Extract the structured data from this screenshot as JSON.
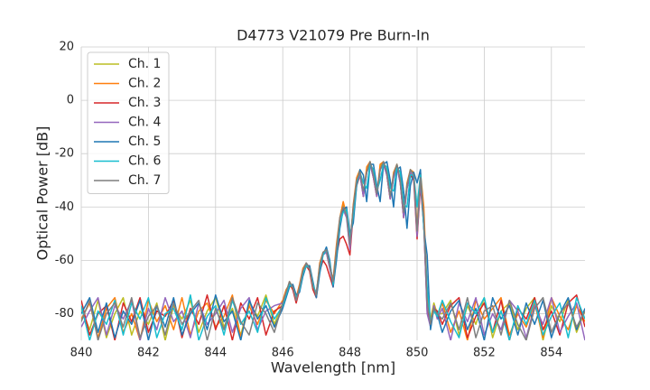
{
  "chart_data": {
    "type": "line",
    "title": "D4773 V21079 Pre Burn-In",
    "x_label": "Wavelength [nm]",
    "y_label": "Optical Power [dB]",
    "xlim": [
      840,
      855
    ],
    "xticks": [
      840,
      842,
      844,
      846,
      848,
      850,
      852,
      854
    ],
    "ylim": [
      -90,
      20
    ],
    "yticks": [
      -80,
      -60,
      -40,
      -20,
      0,
      20
    ],
    "grid": true,
    "legend": "upper left",
    "x": [
      840,
      840.25,
      840.5,
      840.75,
      841,
      841.25,
      841.5,
      841.75,
      842,
      842.25,
      842.5,
      842.75,
      843,
      843.25,
      843.5,
      843.75,
      844,
      844.25,
      844.5,
      844.75,
      845,
      845.25,
      845.5,
      845.75,
      846,
      846.1,
      846.2,
      846.3,
      846.4,
      846.5,
      846.6,
      846.7,
      846.8,
      846.9,
      847,
      847.1,
      847.2,
      847.3,
      847.4,
      847.5,
      847.6,
      847.7,
      847.8,
      847.9,
      848,
      848.1,
      848.2,
      848.3,
      848.4,
      848.5,
      848.6,
      848.7,
      848.8,
      848.9,
      849,
      849.1,
      849.2,
      849.3,
      849.4,
      849.5,
      849.6,
      849.7,
      849.8,
      849.9,
      850,
      850.1,
      850.2,
      850.3,
      850.4,
      850.5,
      850.6,
      850.75,
      851,
      851.25,
      851.5,
      851.75,
      852,
      852.25,
      852.5,
      852.75,
      853,
      853.25,
      853.5,
      853.75,
      854,
      854.25,
      854.5,
      854.75,
      855
    ],
    "series": [
      {
        "name": "Ch. 1",
        "color": "#bcbd22",
        "values": [
          -78,
          -86,
          -75,
          -89,
          -80,
          -74,
          -88,
          -79,
          -84,
          -76,
          -90,
          -77,
          -82,
          -75,
          -87,
          -79,
          -74,
          -85,
          -78,
          -88,
          -76,
          -81,
          -73,
          -84,
          -76,
          -72,
          -68,
          -70,
          -75,
          -70,
          -64,
          -61,
          -63,
          -70,
          -72,
          -62,
          -57,
          -56,
          -62,
          -68,
          -55,
          -45,
          -39,
          -42,
          -55,
          -40,
          -30,
          -27,
          -35,
          -26,
          -23,
          -28,
          -35,
          -25,
          -23,
          -27,
          -36,
          -28,
          -24,
          -30,
          -43,
          -32,
          -26,
          -28,
          -50,
          -30,
          -45,
          -78,
          -82,
          -76,
          -80,
          -80,
          -75,
          -88,
          -77,
          -84,
          -74,
          -89,
          -79,
          -76,
          -86,
          -78,
          -74,
          -90,
          -77,
          -83,
          -75,
          -87,
          -79
        ]
      },
      {
        "name": "Ch. 2",
        "color": "#ff7f0e",
        "values": [
          -82,
          -76,
          -89,
          -78,
          -74,
          -87,
          -80,
          -90,
          -75,
          -83,
          -77,
          -86,
          -74,
          -88,
          -79,
          -76,
          -85,
          -81,
          -73,
          -89,
          -77,
          -84,
          -75,
          -80,
          -75,
          -71,
          -69,
          -71,
          -74,
          -69,
          -63,
          -61,
          -64,
          -71,
          -73,
          -61,
          -57,
          -57,
          -63,
          -67,
          -54,
          -44,
          -38,
          -43,
          -56,
          -39,
          -29,
          -26,
          -36,
          -25,
          -23,
          -29,
          -36,
          -24,
          -23,
          -28,
          -37,
          -27,
          -24,
          -31,
          -44,
          -31,
          -26,
          -27,
          -48,
          -27,
          -40,
          -72,
          -84,
          -77,
          -81,
          -76,
          -87,
          -79,
          -90,
          -75,
          -82,
          -78,
          -74,
          -88,
          -80,
          -85,
          -76,
          -89,
          -74,
          -81,
          -86,
          -77,
          -83
        ]
      },
      {
        "name": "Ch. 3",
        "color": "#d62728",
        "values": [
          -75,
          -88,
          -80,
          -77,
          -90,
          -76,
          -83,
          -74,
          -87,
          -79,
          -81,
          -75,
          -89,
          -78,
          -84,
          -73,
          -86,
          -77,
          -90,
          -76,
          -82,
          -74,
          -88,
          -79,
          -77,
          -73,
          -68,
          -71,
          -76,
          -71,
          -65,
          -62,
          -64,
          -71,
          -74,
          -64,
          -60,
          -62,
          -66,
          -70,
          -58,
          -52,
          -51,
          -54,
          -58,
          -42,
          -32,
          -28,
          -36,
          -27,
          -24,
          -29,
          -36,
          -26,
          -24,
          -28,
          -37,
          -29,
          -25,
          -31,
          -44,
          -33,
          -28,
          -30,
          -52,
          -32,
          -47,
          -79,
          -83,
          -78,
          -79,
          -84,
          -77,
          -74,
          -89,
          -81,
          -76,
          -87,
          -75,
          -90,
          -78,
          -82,
          -74,
          -86,
          -79,
          -88,
          -76,
          -73,
          -85
        ]
      },
      {
        "name": "Ch. 4",
        "color": "#9467bd",
        "values": [
          -85,
          -79,
          -74,
          -88,
          -77,
          -82,
          -75,
          -90,
          -78,
          -86,
          -74,
          -83,
          -79,
          -89,
          -76,
          -84,
          -80,
          -75,
          -87,
          -78,
          -74,
          -86,
          -79,
          -77,
          -76,
          -72,
          -69,
          -70,
          -75,
          -70,
          -64,
          -61,
          -63,
          -70,
          -72,
          -63,
          -58,
          -57,
          -63,
          -69,
          -56,
          -46,
          -41,
          -44,
          -56,
          -41,
          -31,
          -28,
          -36,
          -27,
          -24,
          -29,
          -36,
          -26,
          -24,
          -28,
          -37,
          -29,
          -25,
          -31,
          -44,
          -33,
          -27,
          -29,
          -51,
          -31,
          -46,
          -80,
          -85,
          -77,
          -82,
          -78,
          -90,
          -76,
          -83,
          -74,
          -88,
          -80,
          -86,
          -75,
          -79,
          -89,
          -77,
          -84,
          -74,
          -87,
          -81,
          -76,
          -90
        ]
      },
      {
        "name": "Ch. 5",
        "color": "#1f77b4",
        "values": [
          -80,
          -74,
          -87,
          -76,
          -89,
          -79,
          -84,
          -75,
          -90,
          -77,
          -85,
          -74,
          -88,
          -80,
          -76,
          -86,
          -73,
          -83,
          -79,
          -90,
          -75,
          -82,
          -77,
          -85,
          -78,
          -74,
          -70,
          -69,
          -73,
          -72,
          -66,
          -62,
          -62,
          -68,
          -74,
          -65,
          -58,
          -55,
          -60,
          -70,
          -60,
          -48,
          -41,
          -40,
          -50,
          -46,
          -32,
          -26,
          -28,
          -38,
          -24,
          -24,
          -32,
          -38,
          -24,
          -23,
          -30,
          -40,
          -26,
          -25,
          -34,
          -48,
          -32,
          -27,
          -31,
          -26,
          -48,
          -58,
          -86,
          -78,
          -80,
          -87,
          -79,
          -75,
          -86,
          -78,
          -90,
          -74,
          -82,
          -77,
          -88,
          -76,
          -84,
          -75,
          -89,
          -80,
          -74,
          -86,
          -78
        ]
      },
      {
        "name": "Ch. 6",
        "color": "#17becf",
        "values": [
          -77,
          -90,
          -79,
          -84,
          -75,
          -88,
          -76,
          -82,
          -74,
          -89,
          -80,
          -78,
          -86,
          -73,
          -90,
          -81,
          -77,
          -88,
          -75,
          -84,
          -79,
          -87,
          -74,
          -82,
          -77,
          -73,
          -69,
          -70,
          -74,
          -71,
          -65,
          -62,
          -63,
          -69,
          -73,
          -63,
          -58,
          -56,
          -61,
          -69,
          -57,
          -46,
          -42,
          -41,
          -52,
          -43,
          -31,
          -27,
          -31,
          -33,
          -24,
          -26,
          -34,
          -30,
          -24,
          -25,
          -33,
          -34,
          -25,
          -27,
          -39,
          -40,
          -28,
          -28,
          -40,
          -28,
          -47,
          -70,
          -83,
          -79,
          -81,
          -75,
          -83,
          -89,
          -76,
          -80,
          -74,
          -87,
          -79,
          -90,
          -77,
          -84,
          -75,
          -88,
          -81,
          -76,
          -89,
          -74,
          -82
        ]
      },
      {
        "name": "Ch. 7",
        "color": "#7f7f7f",
        "values": [
          -83,
          -75,
          -90,
          -80,
          -76,
          -85,
          -74,
          -89,
          -81,
          -77,
          -88,
          -76,
          -84,
          -79,
          -75,
          -90,
          -78,
          -86,
          -74,
          -83,
          -88,
          -76,
          -80,
          -87,
          -76,
          -72,
          -68,
          -70,
          -75,
          -70,
          -64,
          -61,
          -63,
          -70,
          -73,
          -62,
          -57,
          -56,
          -62,
          -68,
          -56,
          -44,
          -40,
          -43,
          -54,
          -40,
          -30,
          -27,
          -34,
          -27,
          -23,
          -28,
          -35,
          -26,
          -23,
          -27,
          -36,
          -28,
          -24,
          -30,
          -42,
          -32,
          -26,
          -28,
          -49,
          -29,
          -44,
          -76,
          -84,
          -78,
          -80,
          -82,
          -76,
          -86,
          -74,
          -89,
          -79,
          -77,
          -88,
          -75,
          -84,
          -90,
          -78,
          -74,
          -87,
          -80,
          -76,
          -85,
          -79
        ]
      }
    ]
  }
}
